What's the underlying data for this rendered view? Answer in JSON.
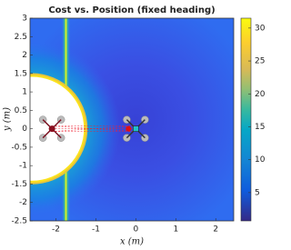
{
  "chart_data": {
    "type": "heatmap",
    "title": "Cost vs. Position (fixed heading)",
    "x_label": "x (m)",
    "y_label": "y (m)",
    "xlim": [
      -2.65,
      2.45
    ],
    "xticks": [
      -2,
      -1,
      0,
      1,
      2
    ],
    "ylim": [
      -2.5,
      3
    ],
    "yticks": [
      -2.5,
      -2,
      -1.5,
      -1,
      -0.5,
      0,
      0.5,
      1,
      1.5,
      2,
      2.5,
      3
    ],
    "colormap": "parula",
    "clim": [
      0.7,
      31.5
    ],
    "cticks": [
      5,
      10,
      15,
      20,
      25,
      30
    ]
  }
}
